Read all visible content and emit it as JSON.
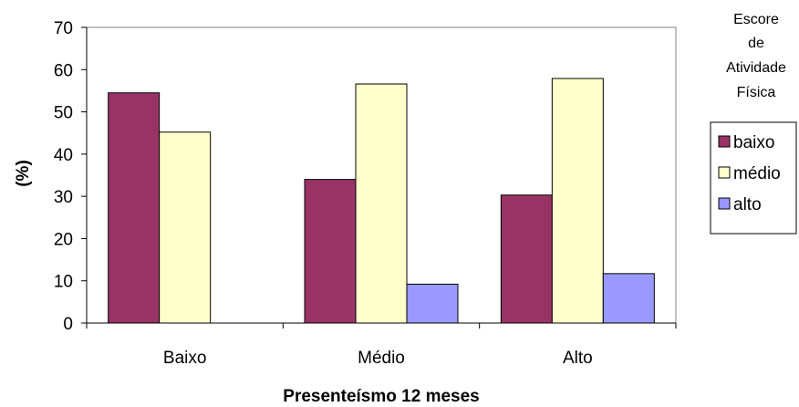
{
  "chart_data": {
    "type": "bar",
    "categories": [
      "Baixo",
      "Médio",
      "Alto"
    ],
    "series": [
      {
        "name": "baixo",
        "color": "#993366",
        "values": [
          54.5,
          34.0,
          30.3
        ]
      },
      {
        "name": "médio",
        "color": "#FFFFCC",
        "values": [
          45.2,
          56.6,
          57.9
        ]
      },
      {
        "name": "alto",
        "color": "#9999FF",
        "values": [
          0,
          9.2,
          11.7
        ]
      }
    ],
    "xlabel": "Presenteísmo 12 meses",
    "ylabel": "(%)",
    "ylim": [
      0,
      70
    ],
    "yticks": [
      0,
      10,
      20,
      30,
      40,
      50,
      60,
      70
    ],
    "grid": false,
    "legend": {
      "title_lines": [
        "Escore",
        "de",
        "Atividade",
        "Física"
      ],
      "placement": "right"
    }
  }
}
